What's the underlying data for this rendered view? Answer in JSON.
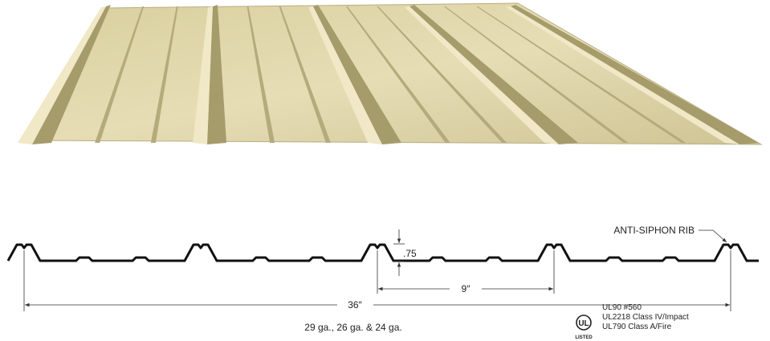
{
  "labels": {
    "rib": "ANTI-SIPHON RIB",
    "height": ".75",
    "rib_spacing": "9″",
    "coverage": "36″",
    "gauges": "29 ga., 26 ga. & 24 ga."
  },
  "ul_logo": {
    "mark": "UL",
    "listed": "LISTED"
  },
  "ratings": [
    "UL90 #560",
    "UL2218 Class IV/Impact",
    "UL790 Class A/Fire"
  ]
}
